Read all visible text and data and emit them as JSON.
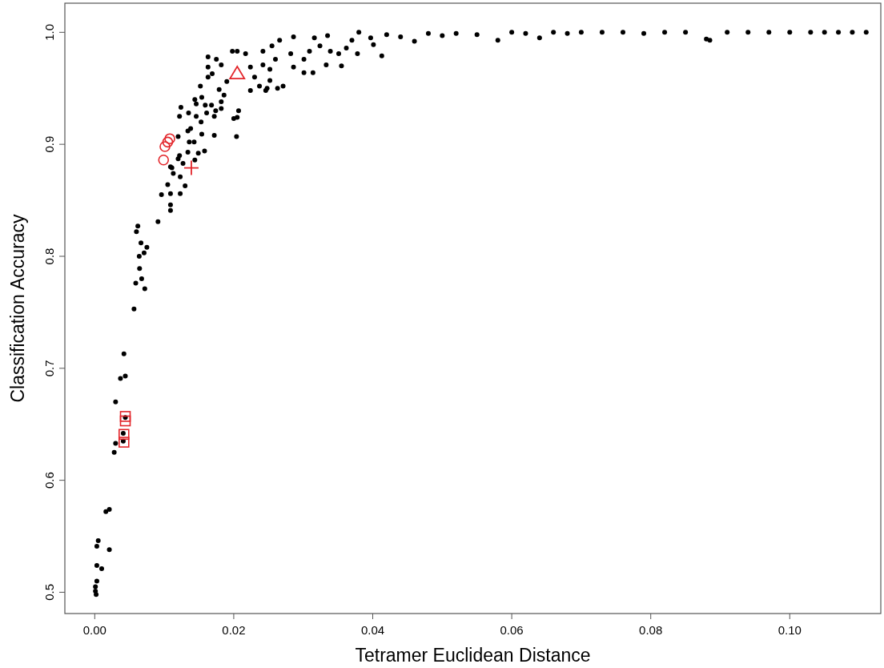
{
  "chart_data": {
    "type": "scatter",
    "xlabel": "Tetramer Euclidean Distance",
    "ylabel": "Classification Accuracy",
    "xlim": [
      -0.0043,
      0.1131
    ],
    "ylim": [
      0.481,
      1.026
    ],
    "xticks": [
      {
        "value": 0,
        "label": "0.00"
      },
      {
        "value": 0.02,
        "label": "0.02"
      },
      {
        "value": 0.04,
        "label": "0.04"
      },
      {
        "value": 0.06,
        "label": "0.06"
      },
      {
        "value": 0.08,
        "label": "0.08"
      },
      {
        "value": 0.1,
        "label": "0.10"
      }
    ],
    "yticks": [
      {
        "value": 0.5,
        "label": "0.5"
      },
      {
        "value": 0.6,
        "label": "0.6"
      },
      {
        "value": 0.7,
        "label": "0.7"
      },
      {
        "value": 0.8,
        "label": "0.8"
      },
      {
        "value": 0.9,
        "label": "0.9"
      },
      {
        "value": 1,
        "label": "1.0"
      }
    ],
    "grid": false,
    "series": [
      {
        "color": "#000000",
        "marker": "circle",
        "x": [
          0.00665,
          0.0075,
          0.0064,
          0.0071,
          0.00645,
          0.00675,
          0.0059,
          0.0072,
          0.00565,
          0.0042,
          0.0037,
          0.0044,
          0.003,
          0.0044,
          0.0041,
          0.003,
          0.0041,
          0.0028,
          0.0016,
          0.0021,
          0.0005,
          0.0003,
          0.0021,
          0.0003,
          0.001,
          0.0003,
          0.0001,
          0.0001,
          0.0002,
          0.0062,
          0.006,
          0.0091,
          0.0096,
          0.0109,
          0.0123,
          0.0109,
          0.0109,
          0.0105,
          0.013,
          0.0123,
          0.0127,
          0.012,
          0.0122,
          0.0134,
          0.0144,
          0.0149,
          0.0158,
          0.0113,
          0.0111,
          0.0109,
          0.0136,
          0.0143,
          0.0154,
          0.0134,
          0.0138,
          0.012,
          0.0172,
          0.0204,
          0.0205,
          0.0207,
          0.02,
          0.0122,
          0.0124,
          0.0135,
          0.0146,
          0.0153,
          0.0159,
          0.0161,
          0.0172,
          0.0174,
          0.0168,
          0.0182,
          0.0182,
          0.0146,
          0.0144,
          0.0154,
          0.0152,
          0.0163,
          0.0163,
          0.0163,
          0.0175,
          0.0169,
          0.0179,
          0.0186,
          0.019,
          0.0182,
          0.0205,
          0.0198,
          0.0217,
          0.0224,
          0.023,
          0.0237,
          0.0248,
          0.0263,
          0.0271,
          0.0246,
          0.0252,
          0.0224,
          0.0242,
          0.0252,
          0.026,
          0.0242,
          0.0255,
          0.0266,
          0.0286,
          0.0282,
          0.0286,
          0.0301,
          0.0314,
          0.0301,
          0.0309,
          0.0324,
          0.0316,
          0.0335,
          0.0339,
          0.0333,
          0.0355,
          0.0351,
          0.0362,
          0.037,
          0.038,
          0.0397,
          0.0413,
          0.0401,
          0.0378,
          0.042,
          0.044,
          0.046,
          0.048,
          0.05,
          0.052,
          0.055,
          0.058,
          0.06,
          0.062,
          0.064,
          0.066,
          0.068,
          0.07,
          0.073,
          0.076,
          0.079,
          0.082,
          0.085,
          0.088,
          0.0885,
          0.091,
          0.094,
          0.097,
          0.1,
          0.103,
          0.105,
          0.107,
          0.109,
          0.111
        ],
        "values": [
          0.812,
          0.808,
          0.8,
          0.803,
          0.789,
          0.78,
          0.776,
          0.771,
          0.753,
          0.713,
          0.691,
          0.693,
          0.67,
          0.656,
          0.642,
          0.633,
          0.635,
          0.625,
          0.572,
          0.574,
          0.546,
          0.541,
          0.538,
          0.524,
          0.521,
          0.51,
          0.505,
          0.501,
          0.498,
          0.827,
          0.822,
          0.831,
          0.855,
          0.856,
          0.856,
          0.841,
          0.846,
          0.864,
          0.863,
          0.871,
          0.883,
          0.887,
          0.89,
          0.893,
          0.886,
          0.892,
          0.894,
          0.874,
          0.879,
          0.88,
          0.902,
          0.902,
          0.909,
          0.912,
          0.914,
          0.907,
          0.908,
          0.907,
          0.924,
          0.93,
          0.923,
          0.925,
          0.933,
          0.928,
          0.925,
          0.92,
          0.935,
          0.928,
          0.925,
          0.93,
          0.935,
          0.932,
          0.938,
          0.936,
          0.94,
          0.942,
          0.952,
          0.96,
          0.969,
          0.978,
          0.976,
          0.963,
          0.949,
          0.944,
          0.956,
          0.971,
          0.983,
          0.983,
          0.981,
          0.948,
          0.96,
          0.952,
          0.95,
          0.95,
          0.952,
          0.948,
          0.957,
          0.969,
          0.971,
          0.967,
          0.976,
          0.983,
          0.988,
          0.993,
          0.996,
          0.981,
          0.969,
          0.964,
          0.964,
          0.976,
          0.983,
          0.988,
          0.995,
          0.997,
          0.983,
          0.971,
          0.97,
          0.981,
          0.986,
          0.993,
          1.0,
          0.995,
          0.979,
          0.989,
          0.981,
          0.998,
          0.996,
          0.992,
          0.999,
          0.997,
          0.999,
          0.998,
          0.993,
          1.0,
          0.999,
          0.995,
          1.0,
          0.999,
          1.0,
          1.0,
          1.0,
          0.999,
          1.0,
          1.0,
          0.994,
          0.993,
          1.0,
          1.0,
          1.0,
          1.0,
          1.0,
          1.0,
          1.0,
          1.0,
          1.0
        ]
      },
      {
        "color": "#e3262b",
        "marker": "square",
        "x": [
          0.0044,
          0.0044,
          0.0042,
          0.0042
        ],
        "values": [
          0.657,
          0.653,
          0.641,
          0.634
        ]
      },
      {
        "color": "#e3262b",
        "marker": "circle",
        "x": [
          0.0108,
          0.0105,
          0.0101,
          0.0099
        ],
        "values": [
          0.905,
          0.902,
          0.898,
          0.886
        ]
      },
      {
        "color": "#e3262b",
        "marker": "cross",
        "x": [
          0.0139
        ],
        "values": [
          0.879
        ]
      },
      {
        "color": "#e3262b",
        "marker": "triangle",
        "x": [
          0.0205
        ],
        "values": [
          0.963
        ]
      }
    ]
  }
}
